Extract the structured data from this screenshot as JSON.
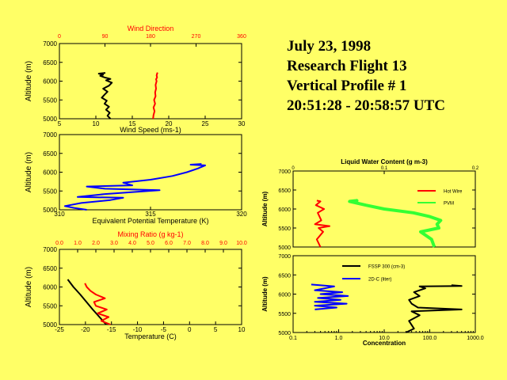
{
  "header": {
    "date": "July 23, 1998",
    "flight": "Research Flight 13",
    "profile": "Vertical Profile # 1",
    "time_range": "20:51:28 - 20:58:57 UTC"
  },
  "colors": {
    "background": "#ffff66",
    "red": "#ff0000",
    "blue": "#0000ff",
    "green": "#33ff33",
    "black": "#000000"
  },
  "chart_data": [
    {
      "id": "wind",
      "type": "line",
      "top_title": "Wind Direction",
      "bottom_title": "Wind Speed (ms-1)",
      "ylabel": "Altitude (m)",
      "ylim": [
        5000,
        7000
      ],
      "y_ticks": [
        "5000",
        "5500",
        "6000",
        "6500",
        "7000"
      ],
      "x_top_lim": [
        0,
        360
      ],
      "x_top_ticks": [
        "0",
        "90",
        "180",
        "270",
        "360"
      ],
      "x_bottom_lim": [
        5,
        30
      ],
      "x_bottom_ticks": [
        "5",
        "10",
        "15",
        "20",
        "25",
        "30"
      ],
      "series": [
        {
          "name": "Wind Speed",
          "axis": "bottom",
          "color": "#000000",
          "x": [
            12.0,
            11.6,
            11.9,
            11.4,
            11.8,
            11.2,
            11.5,
            10.8,
            11.2,
            11.6,
            11.0,
            11.8,
            12.2,
            11.4,
            12.0,
            11.2,
            10.6,
            11.0,
            10.4,
            11.3
          ],
          "y": [
            5000,
            5080,
            5160,
            5240,
            5320,
            5400,
            5480,
            5560,
            5640,
            5720,
            5800,
            5880,
            5960,
            6020,
            6060,
            6100,
            6140,
            6170,
            6200,
            6220
          ]
        },
        {
          "name": "Wind Direction",
          "axis": "top",
          "color": "#ff0000",
          "x": [
            185,
            186,
            188,
            186,
            189,
            187,
            190,
            189,
            191,
            190,
            192,
            191,
            193,
            192,
            193,
            194
          ],
          "y": [
            5000,
            5100,
            5200,
            5300,
            5400,
            5500,
            5600,
            5700,
            5800,
            5900,
            6000,
            6050,
            6100,
            6150,
            6200,
            6230
          ]
        }
      ]
    },
    {
      "id": "theta",
      "type": "line",
      "bottom_title": "Equivalent Potential Temperature (K)",
      "ylabel": "Altitude (m)",
      "ylim": [
        5000,
        7000
      ],
      "y_ticks": [
        "5000",
        "5500",
        "6000",
        "6500",
        "7000"
      ],
      "x_bottom_lim": [
        310,
        320
      ],
      "x_bottom_ticks": [
        "310",
        "315",
        "320"
      ],
      "series": [
        {
          "name": "Theta-e",
          "axis": "bottom",
          "color": "#0000ff",
          "x": [
            311.5,
            310.8,
            310.3,
            311.2,
            312.8,
            313.5,
            311.0,
            312.5,
            315.5,
            312.5,
            311.5,
            314.0,
            313.5,
            315.0,
            316.2,
            317.0,
            317.6,
            318.0,
            317.2,
            317.8
          ],
          "y": [
            5000,
            5050,
            5100,
            5180,
            5260,
            5320,
            5340,
            5420,
            5520,
            5560,
            5620,
            5650,
            5720,
            5800,
            5900,
            6000,
            6100,
            6180,
            6200,
            6220
          ]
        }
      ]
    },
    {
      "id": "temp",
      "type": "line",
      "top_title": "Mixing Ratio (g kg-1)",
      "bottom_title": "Temperature (C)",
      "ylabel": "Altitude (m)",
      "ylim": [
        5000,
        7000
      ],
      "y_ticks": [
        "5000",
        "5500",
        "6000",
        "6500",
        "7000"
      ],
      "x_top_lim": [
        0,
        10
      ],
      "x_top_ticks": [
        "0.0",
        "1.0",
        "2.0",
        "3.0",
        "4.0",
        "5.0",
        "6.0",
        "7.0",
        "8.0",
        "9.0",
        "10.0"
      ],
      "x_bottom_lim": [
        -25,
        10
      ],
      "x_bottom_ticks": [
        "-25",
        "-20",
        "-15",
        "-10",
        "-5",
        "0",
        "5",
        "10"
      ],
      "series": [
        {
          "name": "Temperature",
          "axis": "bottom",
          "color": "#000000",
          "x": [
            -16.0,
            -17.3,
            -18.6,
            -19.8,
            -21.0,
            -22.3,
            -23.4
          ],
          "y": [
            5000,
            5200,
            5400,
            5600,
            5800,
            6000,
            6200
          ]
        },
        {
          "name": "Mixing Ratio",
          "axis": "top",
          "color": "#ff0000",
          "x": [
            2.8,
            2.3,
            2.7,
            2.1,
            2.6,
            2.0,
            1.9,
            2.5,
            2.0,
            1.7,
            1.5,
            1.4
          ],
          "y": [
            5000,
            5100,
            5200,
            5300,
            5400,
            5500,
            5600,
            5700,
            5800,
            5900,
            6000,
            6100
          ]
        }
      ]
    },
    {
      "id": "lwc",
      "type": "line",
      "top_title": "Liquid Water Content (g m-3)",
      "ylabel": "Altitude (m)",
      "ylim": [
        5000,
        7000
      ],
      "y_ticks": [
        "5000",
        "5500",
        "6000",
        "6500",
        "7000"
      ],
      "x_top_lim": [
        0,
        0.2
      ],
      "x_top_ticks": [
        "0",
        "0.1",
        "0.2"
      ],
      "legend": [
        "Hot Wire",
        "PVM"
      ],
      "series": [
        {
          "name": "Hot Wire",
          "axis": "top",
          "color": "#ff0000",
          "x": [
            0.03,
            0.026,
            0.033,
            0.028,
            0.04,
            0.024,
            0.031,
            0.027,
            0.034,
            0.025,
            0.03,
            0.026
          ],
          "y": [
            5000,
            5200,
            5400,
            5500,
            5550,
            5600,
            5700,
            5900,
            6000,
            6100,
            6200,
            6220
          ]
        },
        {
          "name": "PVM",
          "axis": "top",
          "color": "#33ff33",
          "x": [
            0.155,
            0.152,
            0.14,
            0.16,
            0.158,
            0.162,
            0.15,
            0.132,
            0.1,
            0.08,
            0.062,
            0.07,
            0.069
          ],
          "y": [
            5000,
            5200,
            5400,
            5500,
            5600,
            5700,
            5800,
            5900,
            6000,
            6100,
            6200,
            6220,
            6230
          ]
        }
      ]
    },
    {
      "id": "conc",
      "type": "line",
      "bottom_title": "Concentration",
      "ylabel": "Altitude (m)",
      "ylim": [
        5000,
        7000
      ],
      "y_ticks": [
        "5000",
        "5500",
        "6000",
        "6500",
        "7000"
      ],
      "x_bottom_log": [
        0.1,
        1000
      ],
      "x_bottom_ticks": [
        "0.1",
        "1.0",
        "10.0",
        "100.0",
        "1000.0"
      ],
      "legend": [
        "FSSP 300 (cm-3)",
        "2D-C (liter)"
      ],
      "series": [
        {
          "name": "FSSP 300 (cm-3)",
          "axis": "bottom",
          "color": "#000000",
          "x": [
            30,
            45,
            35,
            60,
            40,
            500,
            55,
            40,
            35,
            60,
            45,
            80,
            60,
            500,
            300
          ],
          "y": [
            5000,
            5100,
            5300,
            5450,
            5550,
            5600,
            5650,
            5750,
            5850,
            5950,
            6050,
            6150,
            6200,
            6210,
            6230
          ]
        },
        {
          "name": "2D-C (liter)",
          "axis": "bottom",
          "color": "#0000ff",
          "x": [
            0.3,
            0.9,
            0.3,
            1.5,
            0.3,
            1.1,
            0.35,
            1.6,
            0.4,
            1.2,
            0.3,
            0.8,
            0.25
          ],
          "y": [
            5600,
            5650,
            5700,
            5750,
            5800,
            5850,
            5900,
            5950,
            6000,
            6050,
            6100,
            6200,
            6250
          ]
        }
      ]
    }
  ]
}
